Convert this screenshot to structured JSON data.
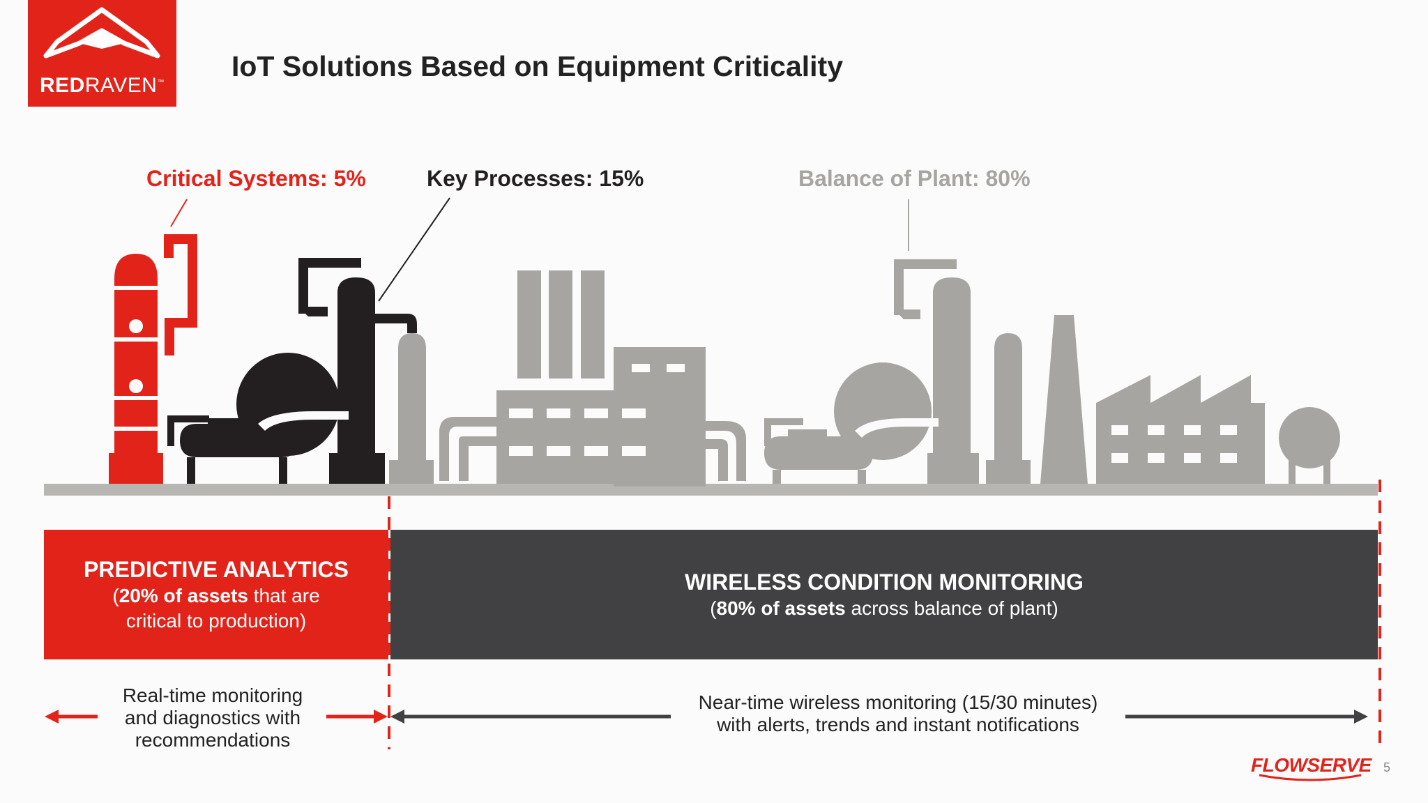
{
  "logo": {
    "brand_bold": "RED",
    "brand_light": "RAVEN",
    "tm": "™"
  },
  "title": "IoT Solutions Based on Equipment Criticality",
  "categories": [
    {
      "label": "Critical Systems: 5%",
      "color": "#e2231a"
    },
    {
      "label": "Key Processes: 15%",
      "color": "#231f20"
    },
    {
      "label": "Balance of Plant: 80%",
      "color": "#a7a5a2"
    }
  ],
  "bands": {
    "predictive": {
      "title": "PREDICTIVE ANALYTICS",
      "sub_pre": "(",
      "sub_bold": "20% of assets",
      "sub_rest": " that are",
      "sub_line2": "critical to production)"
    },
    "wireless": {
      "title": "WIRELESS CONDITION MONITORING",
      "sub_pre": "(",
      "sub_bold": "80% of assets",
      "sub_rest": " across balance of plant)"
    }
  },
  "descriptions": {
    "realtime": [
      "Real-time monitoring",
      "and diagnostics with",
      "recommendations"
    ],
    "neartime": [
      "Near-time wireless monitoring (15/30 minutes)",
      "with alerts, trends and instant notifications"
    ]
  },
  "footer": {
    "brand": "FLOWSERVE",
    "page_number": "5"
  },
  "colors": {
    "red": "#e2231a",
    "dark": "#231f20",
    "gray": "#a7a5a2",
    "band_dark": "#414042"
  }
}
